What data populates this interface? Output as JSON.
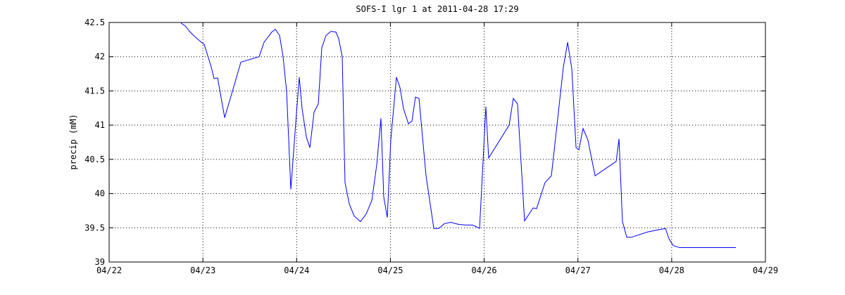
{
  "chart_data": {
    "type": "line",
    "title": "SOFS-I lgr 1 at 2011-04-28 17:29",
    "y_label": "precip (mM)",
    "xlim": [
      22,
      29
    ],
    "xticks": [
      {
        "value": 22,
        "label": "04/22"
      },
      {
        "value": 23,
        "label": "04/23"
      },
      {
        "value": 24,
        "label": "04/24"
      },
      {
        "value": 25,
        "label": "04/25"
      },
      {
        "value": 26,
        "label": "04/26"
      },
      {
        "value": 27,
        "label": "04/27"
      },
      {
        "value": 28,
        "label": "04/28"
      },
      {
        "value": 29,
        "label": "04/29"
      }
    ],
    "ylim": [
      39,
      42.5
    ],
    "yticks": [
      39,
      39.5,
      40,
      40.5,
      41,
      41.5,
      42,
      42.5
    ],
    "grid": true,
    "x": [
      22.766,
      22.811,
      22.864,
      22.924,
      22.984,
      23.014,
      23.089,
      23.119,
      23.157,
      23.232,
      23.314,
      23.405,
      23.6,
      23.652,
      23.735,
      23.773,
      23.818,
      23.855,
      23.893,
      23.938,
      23.99,
      24.028,
      24.058,
      24.103,
      24.141,
      24.186,
      24.231,
      24.268,
      24.313,
      24.366,
      24.419,
      24.449,
      24.486,
      24.516,
      24.561,
      24.614,
      24.681,
      24.741,
      24.802,
      24.854,
      24.899,
      24.929,
      24.967,
      25.004,
      25.064,
      25.102,
      25.14,
      25.192,
      25.23,
      25.267,
      25.305,
      25.38,
      25.463,
      25.515,
      25.575,
      25.643,
      25.725,
      25.801,
      25.876,
      25.951,
      26.018,
      26.048,
      26.266,
      26.311,
      26.356,
      26.431,
      26.522,
      26.559,
      26.649,
      26.717,
      26.845,
      26.89,
      26.935,
      26.98,
      27.01,
      27.055,
      27.107,
      27.183,
      27.408,
      27.438,
      27.475,
      27.521,
      27.566,
      27.746,
      27.934,
      27.971,
      28.016,
      28.084,
      28.685
    ],
    "series": [
      {
        "color": "#0000ff",
        "values": [
          42.49,
          42.45,
          42.36,
          42.28,
          42.21,
          42.18,
          41.85,
          41.68,
          41.69,
          41.11,
          41.49,
          41.92,
          42.0,
          42.21,
          42.36,
          42.4,
          42.31,
          42.0,
          41.49,
          40.06,
          41.03,
          41.7,
          41.24,
          40.83,
          40.67,
          41.19,
          41.31,
          42.13,
          42.31,
          42.37,
          42.36,
          42.26,
          42.0,
          40.16,
          39.85,
          39.67,
          39.59,
          39.7,
          39.9,
          40.42,
          41.1,
          39.95,
          39.65,
          40.78,
          41.7,
          41.55,
          41.24,
          41.02,
          41.06,
          41.41,
          41.39,
          40.26,
          39.49,
          39.49,
          39.56,
          39.58,
          39.55,
          39.54,
          39.54,
          39.49,
          41.27,
          40.52,
          41.0,
          41.39,
          41.31,
          39.6,
          39.79,
          39.78,
          40.16,
          40.26,
          41.85,
          42.21,
          41.82,
          40.67,
          40.64,
          40.95,
          40.78,
          40.26,
          40.47,
          40.8,
          39.59,
          39.36,
          39.36,
          39.44,
          39.49,
          39.34,
          39.24,
          39.21,
          39.21
        ]
      }
    ]
  }
}
